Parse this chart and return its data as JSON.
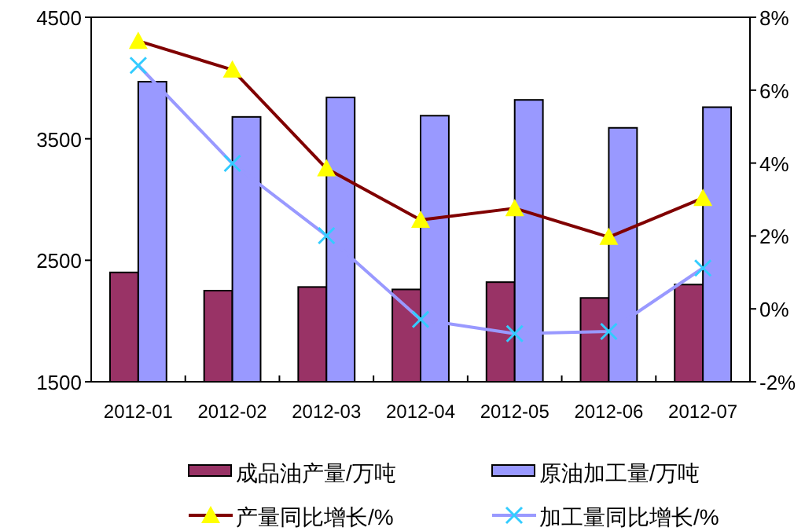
{
  "chart_data": {
    "type": "bar",
    "categories": [
      "2012-01",
      "2012-02",
      "2012-03",
      "2012-04",
      "2012-05",
      "2012-06",
      "2012-07"
    ],
    "series": [
      {
        "name": "成品油产量/万吨",
        "color": "#993366",
        "values": [
          2400,
          2250,
          2280,
          2260,
          2320,
          2190,
          2300
        ]
      },
      {
        "name": "原油加工量/万吨",
        "color": "#9999ff",
        "values": [
          3970,
          3680,
          3840,
          3690,
          3820,
          3590,
          3760
        ]
      },
      {
        "name": "产量同比增长/%",
        "type": "line",
        "axis": "y2",
        "marker": "triangle",
        "color": "#800000",
        "values": [
          7.35,
          6.56,
          3.85,
          2.44,
          2.76,
          1.97,
          3.04
        ]
      },
      {
        "name": "加工量同比增长/%",
        "type": "line",
        "axis": "y2",
        "marker": "cross",
        "color": "#9999ff",
        "values": [
          6.68,
          3.99,
          2.01,
          -0.29,
          -0.68,
          -0.62,
          1.12
        ]
      }
    ],
    "ylim": [
      1500,
      4500
    ],
    "yticks": [
      1500,
      2500,
      3500,
      4500
    ],
    "y2lim": [
      -2,
      8
    ],
    "y2ticks": [
      {
        "value": -2,
        "label": "-2%"
      },
      {
        "value": 0,
        "label": "0%"
      },
      {
        "value": 2,
        "label": "2%"
      },
      {
        "value": 4,
        "label": "4%"
      },
      {
        "value": 6,
        "label": "6%"
      },
      {
        "value": 8,
        "label": "8%"
      }
    ],
    "grid": false,
    "legend": "bottom"
  }
}
